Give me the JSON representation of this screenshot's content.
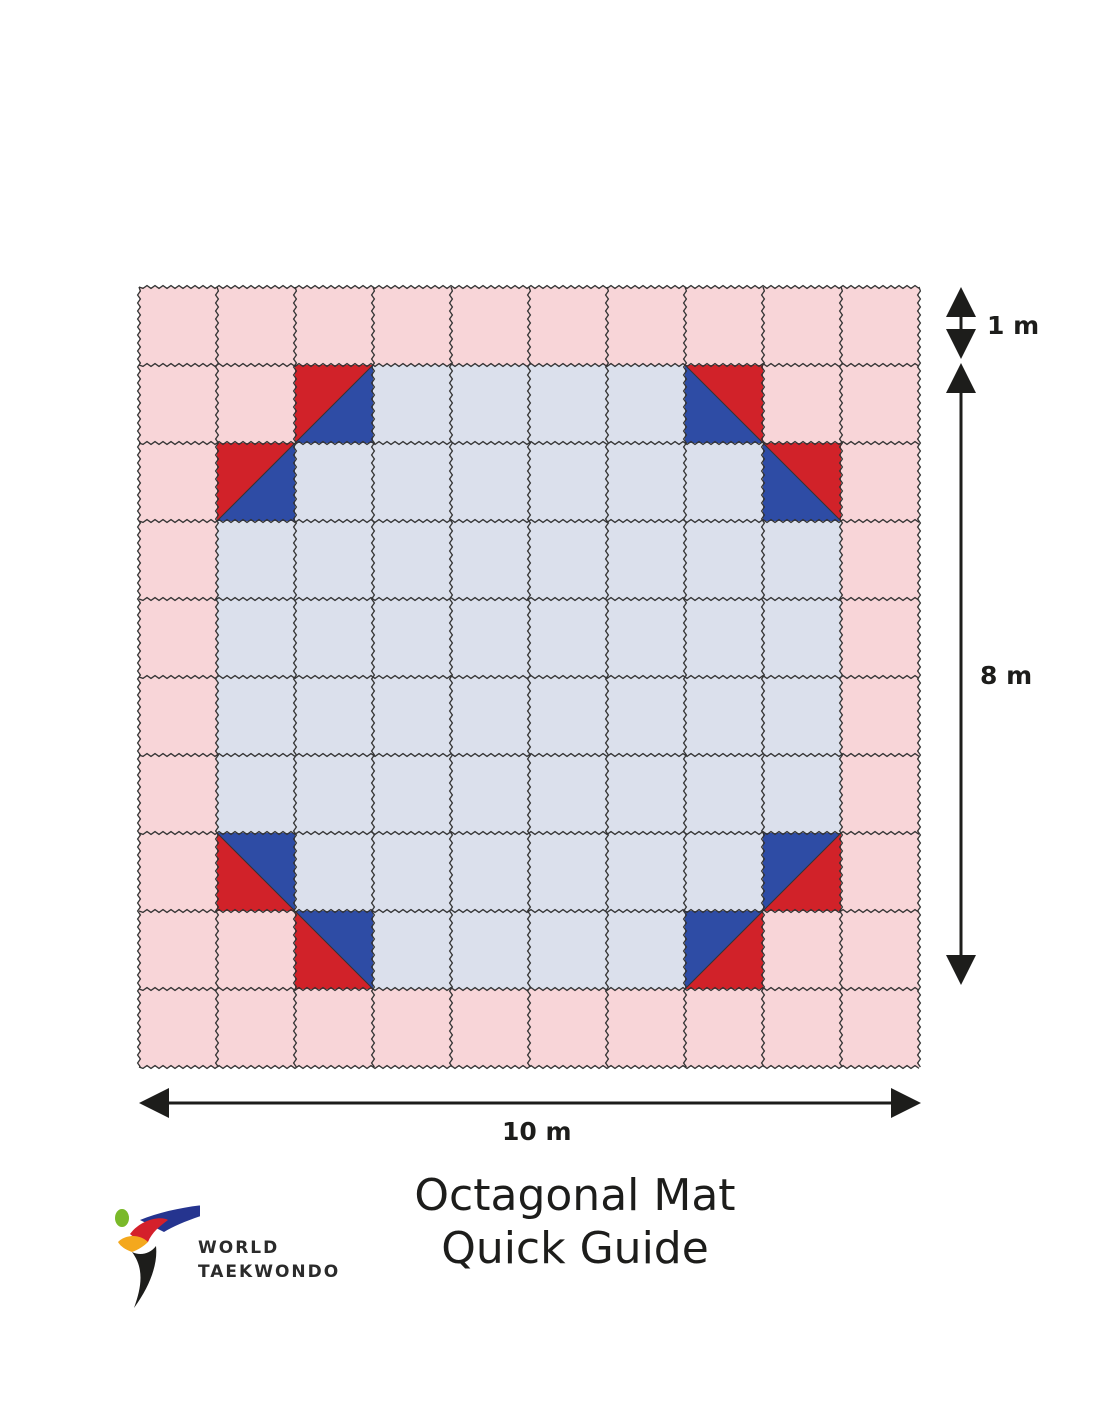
{
  "dimensions": {
    "outer_margin": "1 m",
    "contest_area": "8 m",
    "total_width": "10 m"
  },
  "title": {
    "line1": "Octagonal Mat",
    "line2": "Quick Guide"
  },
  "logo": {
    "line1": "WORLD",
    "line2": "TAEKWONDO"
  },
  "mat": {
    "rows": 10,
    "cols": 10,
    "colors": {
      "outer_zone": "#f8d5d8",
      "contest_zone": "#dbe0ec",
      "red_corner": "#d12229",
      "blue_corner": "#2e4ca5",
      "joint_line": "#333333"
    }
  }
}
